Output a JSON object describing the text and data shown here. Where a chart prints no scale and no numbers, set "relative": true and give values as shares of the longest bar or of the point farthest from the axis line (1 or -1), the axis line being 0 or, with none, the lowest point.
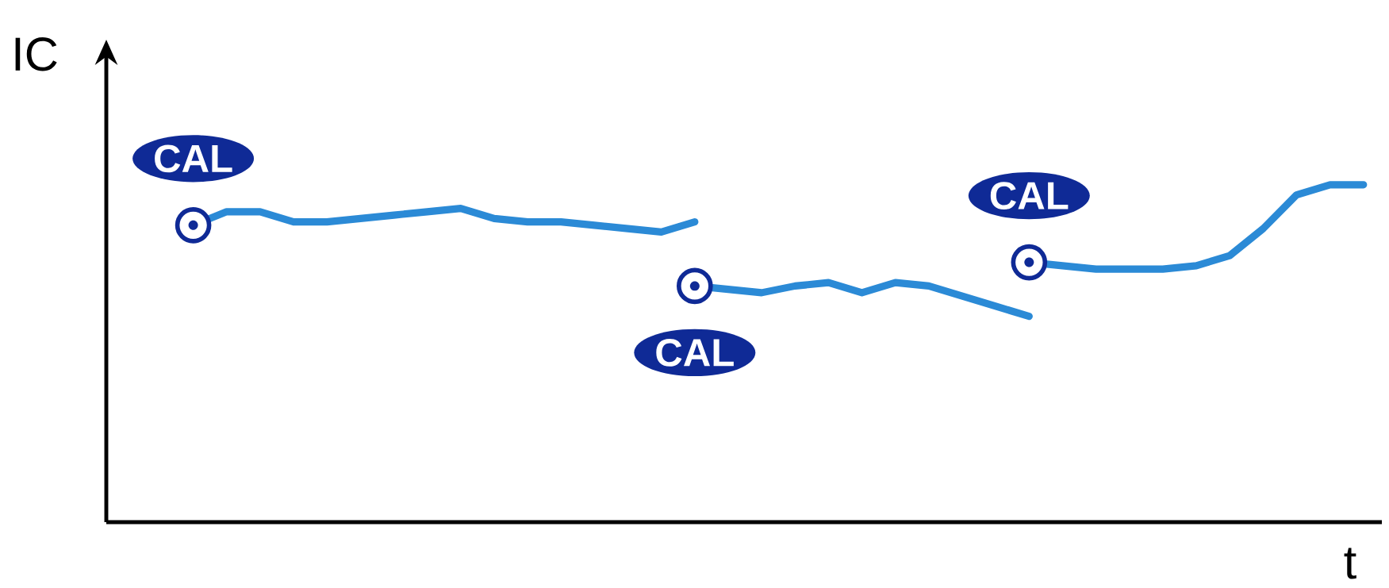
{
  "chart_data": {
    "type": "line",
    "relative": true,
    "xlabel": "t",
    "ylabel": "IC",
    "categories": [
      null,
      null,
      null,
      null,
      null,
      null,
      null,
      null,
      null,
      null,
      null,
      null,
      null,
      null,
      null,
      null,
      null,
      null,
      null,
      null,
      null,
      null,
      null,
      null,
      null,
      null,
      null,
      null,
      null,
      null,
      null,
      null,
      null,
      null,
      null,
      null
    ],
    "series": [
      {
        "color": "#2b8ad6",
        "values": [
          0.88,
          0.92,
          0.92,
          0.89,
          0.89,
          0.9,
          0.91,
          0.92,
          0.93,
          0.9,
          0.89,
          0.89,
          0.88,
          0.87,
          0.86,
          0.89,
          null,
          null,
          null,
          null,
          null,
          null,
          null,
          null,
          null,
          null,
          null,
          null,
          null,
          null,
          null,
          null,
          null,
          null,
          null,
          null
        ]
      },
      {
        "color": "#2b8ad6",
        "values": [
          null,
          null,
          null,
          null,
          null,
          null,
          null,
          null,
          null,
          null,
          null,
          null,
          null,
          null,
          null,
          0.7,
          0.69,
          0.68,
          0.7,
          0.71,
          0.68,
          0.71,
          0.7,
          0.67,
          0.64,
          0.61,
          null,
          null,
          null,
          null,
          null,
          null,
          null,
          null,
          null,
          null
        ]
      },
      {
        "color": "#2b8ad6",
        "values": [
          null,
          null,
          null,
          null,
          null,
          null,
          null,
          null,
          null,
          null,
          null,
          null,
          null,
          null,
          null,
          null,
          null,
          null,
          null,
          null,
          null,
          null,
          null,
          null,
          null,
          0.77,
          0.76,
          0.75,
          0.75,
          0.75,
          0.76,
          0.79,
          0.87,
          0.97,
          1.0,
          1.0
        ]
      }
    ],
    "annotations": [
      "CAL",
      "CAL",
      "CAL"
    ]
  }
}
